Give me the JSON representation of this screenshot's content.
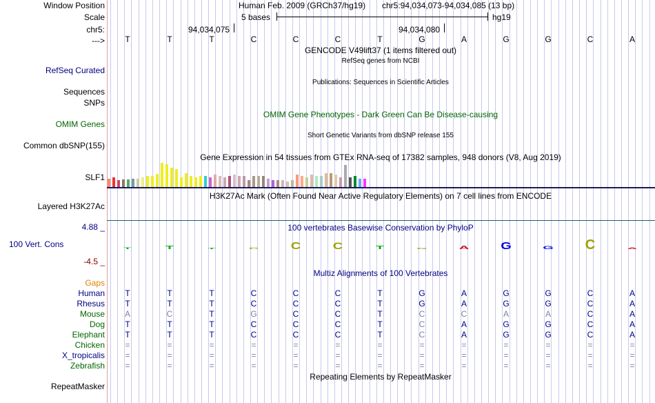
{
  "header": {
    "window_position_label": "Window Position",
    "scale_label": "Scale",
    "chrom_label": "chr5:",
    "strand_label": "--->",
    "assembly_title": "Human Feb. 2009 (GRCh37/hg19)",
    "position_text": "chr5:94,034,073-94,034,085 (13 bp)",
    "scale_text": "5 bases",
    "assembly_short": "hg19",
    "coord_left": "94,034,075",
    "coord_right": "94,034,080"
  },
  "sequence": [
    "T",
    "T",
    "T",
    "C",
    "C",
    "C",
    "T",
    "G",
    "A",
    "G",
    "G",
    "C",
    "A"
  ],
  "tracks": {
    "gencode_title": "GENCODE V49lift37 (1 items filtered out)",
    "refseq_subtitle": "RefSeq genes from NCBI",
    "refseq_label": "RefSeq Curated",
    "publications_title": "Publications: Sequences in Scientific Articles",
    "sequences_label": "Sequences",
    "snps_label": "SNPs",
    "omim_title": "OMIM Gene Phenotypes - Dark Green Can Be Disease-causing",
    "omim_label": "OMIM Genes",
    "dbsnp_title": "Short Genetic Variants from dbSNP release 155",
    "dbsnp_label": "Common dbSNP(155)",
    "gtex_title": "Gene Expression in 54 tissues from GTEx RNA-seq of 17382 samples, 948 donors (V8, Aug 2019)",
    "gtex_label": "SLF1",
    "h3k27ac_title": "H3K27Ac Mark (Often Found Near Active Regulatory Elements) on 7 cell lines from ENCODE",
    "h3k27ac_label": "Layered H3K27Ac",
    "cons_title": "100 vertebrates Basewise Conservation by PhyloP",
    "cons_max": "4.88 _",
    "cons_label": "100 Vert. Cons",
    "cons_min": "-4.5 _",
    "multiz_title": "Multiz Alignments of 100 Vertebrates",
    "gaps_label": "Gaps",
    "repeatmasker_title": "Repeating Elements by RepeatMasker",
    "repeatmasker_label": "RepeatMasker"
  },
  "gtex_values": [
    12,
    14,
    10,
    11,
    11,
    12,
    12,
    14,
    16,
    16,
    19,
    35,
    33,
    28,
    26,
    14,
    20,
    16,
    14,
    16,
    16,
    14,
    18,
    16,
    14,
    16,
    18,
    16,
    16,
    10,
    16,
    16,
    16,
    12,
    10,
    10,
    10,
    8,
    10,
    18,
    16,
    14,
    18,
    16,
    16,
    20,
    20,
    18,
    14,
    32,
    14,
    16,
    12,
    12
  ],
  "gtex_colors": [
    "#ff8866",
    "#ee3333",
    "#cc4466",
    "#887766",
    "#55aa66",
    "#7799aa",
    "#cccc99",
    "#eeee88",
    "#eeee22",
    "#eeee22",
    "#eeee22",
    "#eeee22",
    "#eeee22",
    "#eeee22",
    "#eeee22",
    "#eeee22",
    "#eeee22",
    "#eeee22",
    "#eeee22",
    "#eeee22",
    "#33cccc",
    "#cc66cc",
    "#ddaaaa",
    "#ddbbbb",
    "#ccaaaa",
    "#aa5577",
    "#ddbbcc",
    "#ccaaaa",
    "#bb99aa",
    "#aa8877",
    "#aa9988",
    "#bbaa99",
    "#998877",
    "#cc99dd",
    "#aa66cc",
    "#aa8888",
    "#ccbbaa",
    "#ddbbbb",
    "#bbbb99",
    "#ff9977",
    "#ffaa88",
    "#cccc99",
    "#ddbbaa",
    "#aaeebb",
    "#aacccc",
    "#ddbb99",
    "#bb9977",
    "#ddccaa",
    "#cc99aa",
    "#aaaaaa",
    "#555555",
    "#008833",
    "#66aaff",
    "#ff33ff"
  ],
  "cons_glyphs": [
    {
      "base": "T",
      "color": "#00b000",
      "height": 3
    },
    {
      "base": "T",
      "color": "#00b000",
      "height": 6
    },
    {
      "base": "T",
      "color": "#00b000",
      "height": 2
    },
    {
      "base": "C",
      "color": "#a0a000",
      "height": 3
    },
    {
      "base": "C",
      "color": "#a0a000",
      "height": 12
    },
    {
      "base": "C",
      "color": "#a0a000",
      "height": 11
    },
    {
      "base": "T",
      "color": "#00b000",
      "height": 6
    },
    {
      "base": "G",
      "color": "#a0a000",
      "height": 2
    },
    {
      "base": "A",
      "color": "#dd0000",
      "height": 6
    },
    {
      "base": "G",
      "color": "#0000dd",
      "height": 12
    },
    {
      "base": "G",
      "color": "#0000dd",
      "height": 5
    },
    {
      "base": "C",
      "color": "#a0a000",
      "height": 16
    },
    {
      "base": "A",
      "color": "#dd0000",
      "height": 3
    }
  ],
  "species": [
    {
      "name": "Human",
      "color": "#000080",
      "bases": [
        "T",
        "T",
        "T",
        "C",
        "C",
        "C",
        "T",
        "G",
        "A",
        "G",
        "G",
        "C",
        "A"
      ],
      "dim": [
        0,
        0,
        0,
        0,
        0,
        0,
        0,
        0,
        0,
        0,
        0,
        0,
        0
      ]
    },
    {
      "name": "Rhesus",
      "color": "#000080",
      "bases": [
        "T",
        "T",
        "T",
        "C",
        "C",
        "C",
        "T",
        "G",
        "A",
        "G",
        "G",
        "C",
        "A"
      ],
      "dim": [
        0,
        0,
        0,
        0,
        0,
        0,
        0,
        0,
        0,
        0,
        0,
        0,
        0
      ]
    },
    {
      "name": "Mouse",
      "color": "#006600",
      "bases": [
        "A",
        "C",
        "T",
        "G",
        "C",
        "C",
        "T",
        "C",
        "C",
        "A",
        "A",
        "C",
        "A"
      ],
      "dim": [
        1,
        1,
        0,
        1,
        0,
        0,
        0,
        1,
        1,
        1,
        1,
        0,
        0
      ]
    },
    {
      "name": "Dog",
      "color": "#006600",
      "bases": [
        "T",
        "T",
        "T",
        "C",
        "C",
        "C",
        "T",
        "C",
        "A",
        "G",
        "G",
        "C",
        "A"
      ],
      "dim": [
        0,
        0,
        0,
        0,
        0,
        0,
        0,
        1,
        0,
        0,
        0,
        0,
        0
      ]
    },
    {
      "name": "Elephant",
      "color": "#006600",
      "bases": [
        "T",
        "T",
        "T",
        "C",
        "C",
        "C",
        "T",
        "C",
        "A",
        "G",
        "G",
        "C",
        "A"
      ],
      "dim": [
        0,
        0,
        0,
        0,
        0,
        0,
        0,
        1,
        0,
        0,
        0,
        0,
        0
      ]
    },
    {
      "name": "Chicken",
      "color": "#006600",
      "bases": [
        "=",
        "=",
        "=",
        "=",
        "=",
        "=",
        "=",
        "=",
        "=",
        "=",
        "=",
        "=",
        "="
      ],
      "dim": [
        1,
        1,
        1,
        1,
        1,
        1,
        1,
        1,
        1,
        1,
        1,
        1,
        1
      ]
    },
    {
      "name": "X_tropicalis",
      "color": "#000080",
      "bases": [
        "=",
        "=",
        "=",
        "=",
        "=",
        "=",
        "=",
        "=",
        "=",
        "=",
        "=",
        "=",
        "="
      ],
      "dim": [
        1,
        1,
        1,
        1,
        1,
        1,
        1,
        1,
        1,
        1,
        1,
        1,
        1
      ]
    },
    {
      "name": "Zebrafish",
      "color": "#006600",
      "bases": [
        "=",
        "=",
        "=",
        "=",
        "=",
        "=",
        "=",
        "=",
        "=",
        "=",
        "=",
        "=",
        "="
      ],
      "dim": [
        1,
        1,
        1,
        1,
        1,
        1,
        1,
        1,
        1,
        1,
        1,
        1,
        1
      ]
    }
  ],
  "colors": {
    "track_label_blue": "#000080",
    "track_label_green": "#006600",
    "gaps_orange": "#e08000",
    "cons_min_red": "#800000",
    "dim_base": "#8080a0"
  }
}
